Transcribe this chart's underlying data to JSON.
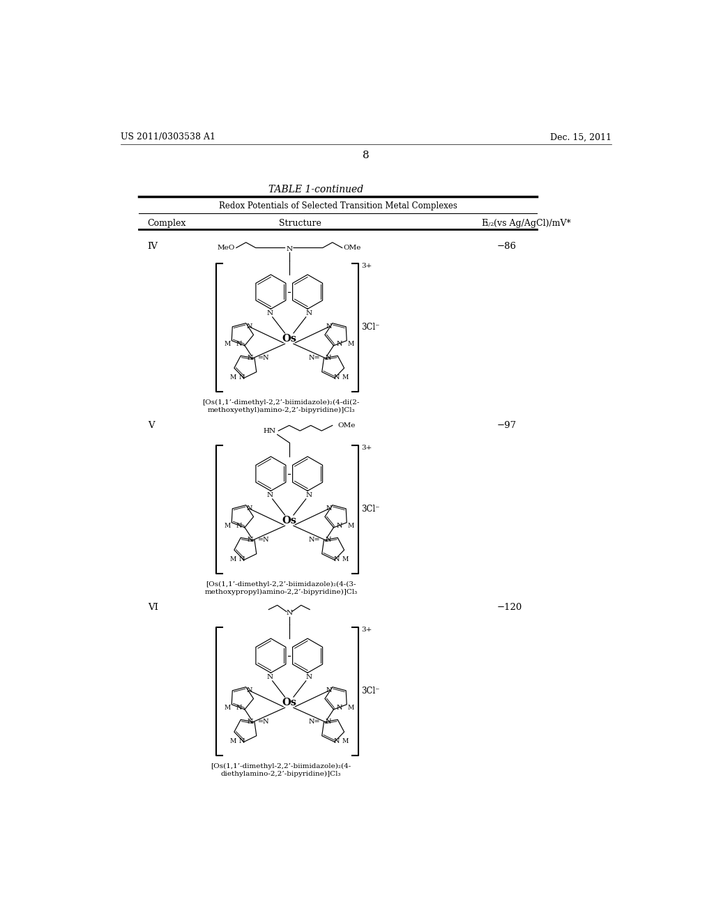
{
  "background_color": "#ffffff",
  "header_left": "US 2011/0303538 A1",
  "header_right": "Dec. 15, 2011",
  "page_number": "8",
  "table_title": "TABLE 1-continued",
  "table_subtitle": "Redox Potentials of Selected Transition Metal Complexes",
  "entries": [
    {
      "complex": "IV",
      "redox": "-86",
      "caption_line1": "[Os(1,1’-dimethyl-2,2’-biimidazole)₂(4-di(2-",
      "caption_line2": "methoxyethyl)amino-2,2’-bipyridine)]Cl₃",
      "substituent_type": "dimethoxy_ethyl"
    },
    {
      "complex": "V",
      "redox": "-97",
      "caption_line1": "[Os(1,1’-dimethyl-2,2’-biimidazole)₂(4-(3-",
      "caption_line2": "methoxypropyl)amino-2,2’-bipyridine)]Cl₃",
      "substituent_type": "methoxypropyl"
    },
    {
      "complex": "VI",
      "redox": "-120",
      "caption_line1": "[Os(1,1’-dimethyl-2,2’-biimidazole)₂(4-",
      "caption_line2": "diethylamino-2,2’-bipyridine)]Cl₃",
      "substituent_type": "diethyl"
    }
  ]
}
